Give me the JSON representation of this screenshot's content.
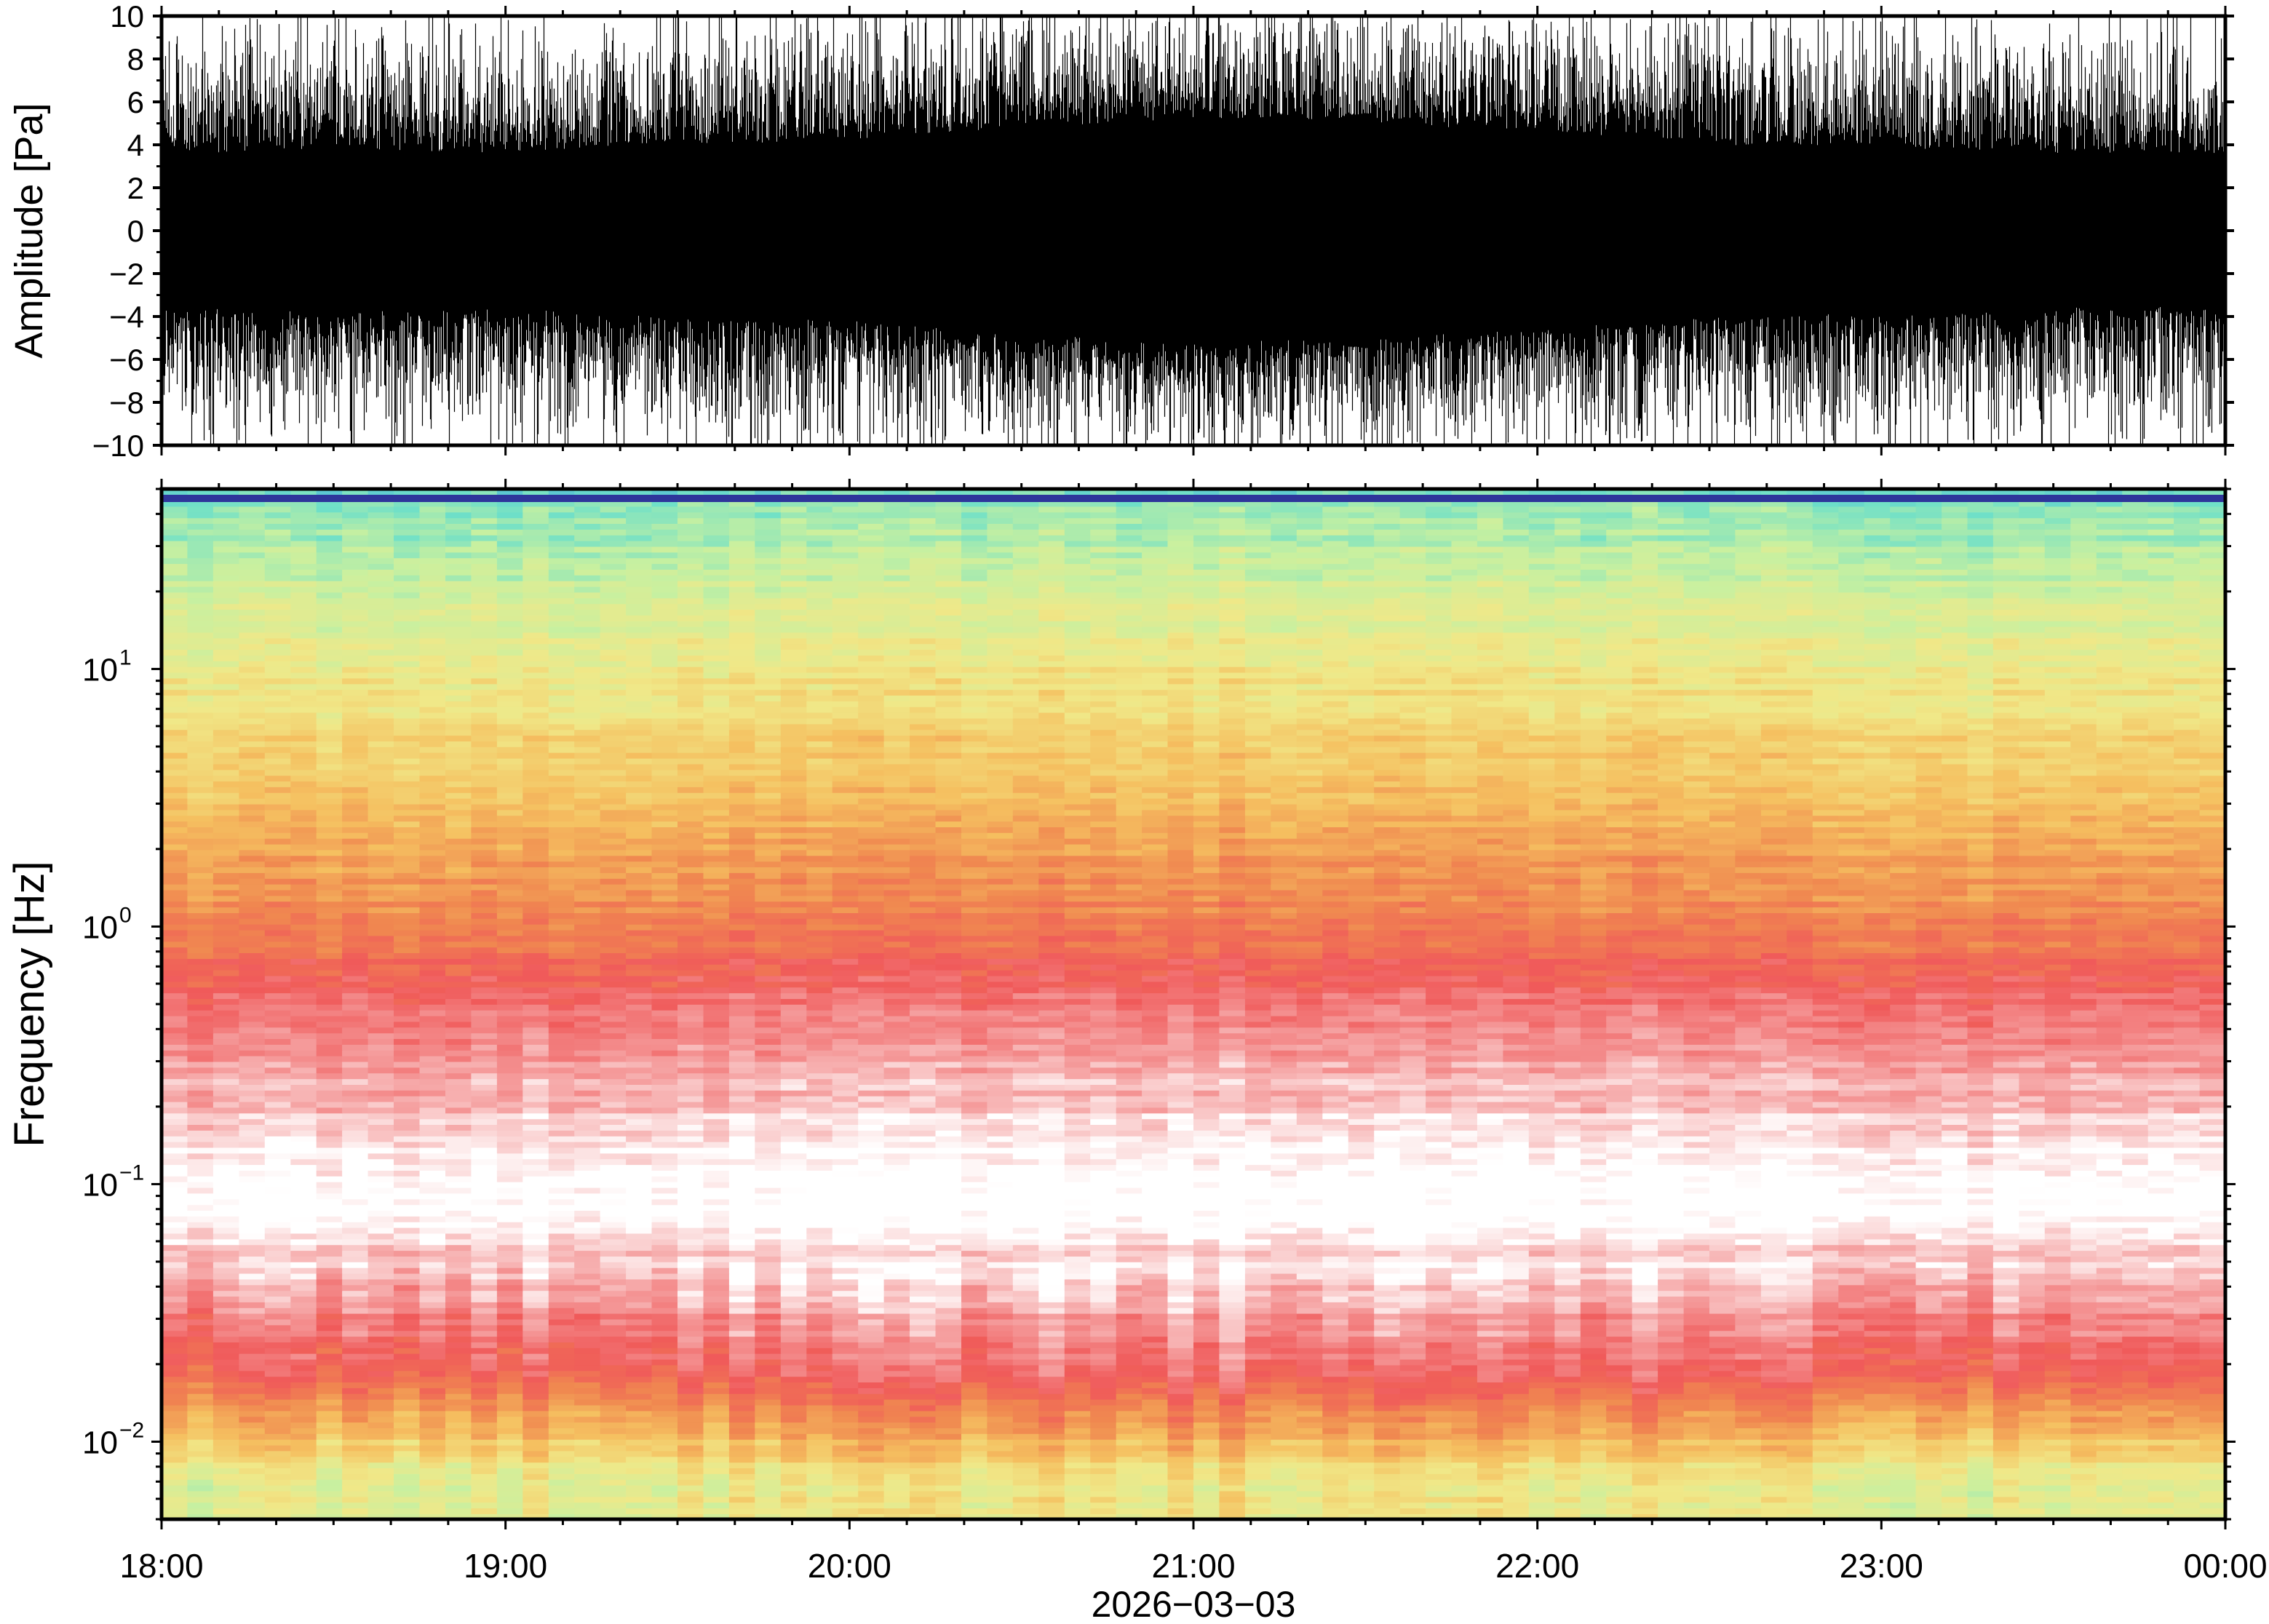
{
  "chart_data": [
    {
      "type": "line",
      "panel": "waveform",
      "ylabel": "Amplitude [Pa]",
      "ylim": [
        -10,
        10
      ],
      "yticks": [
        10,
        8,
        6,
        4,
        2,
        0,
        -2,
        -4,
        -6,
        -8,
        -10
      ],
      "ytick_labels": [
        "10",
        "8",
        "6",
        "4",
        "2",
        "0",
        "−2",
        "−4",
        "−6",
        "−8",
        "−10"
      ],
      "x_range_hours": [
        18,
        24
      ],
      "series_color": "#000000",
      "envelope_hours": [
        18.0,
        18.5,
        19.0,
        19.5,
        20.0,
        20.5,
        21.0,
        21.5,
        22.0,
        22.5,
        23.0,
        23.5,
        24.0
      ],
      "envelope_core": [
        3.5,
        3.8,
        3.6,
        4.0,
        4.2,
        4.8,
        5.2,
        5.0,
        4.6,
        4.0,
        3.8,
        3.6,
        3.5
      ],
      "envelope_peak": [
        9.5,
        9.5,
        9.0,
        9.5,
        9.8,
        10.0,
        10.0,
        10.0,
        10.0,
        9.8,
        9.5,
        9.0,
        9.0
      ],
      "grid": false
    },
    {
      "type": "heatmap",
      "panel": "spectrogram",
      "ylabel": "Frequency [Hz]",
      "yscale": "log",
      "ylim": [
        0.005,
        50
      ],
      "yticks": [
        {
          "base": "10",
          "exp": "1",
          "value": 10
        },
        {
          "base": "10",
          "exp": "0",
          "value": 1
        },
        {
          "base": "10",
          "exp": "−1",
          "value": 0.1
        },
        {
          "base": "10",
          "exp": "−2",
          "value": 0.01
        }
      ],
      "x_range_hours": [
        18,
        24
      ],
      "xticks": [
        "18:00",
        "19:00",
        "20:00",
        "21:00",
        "22:00",
        "23:00",
        "00:00"
      ],
      "xlabel": "2026−03−03",
      "colormap": [
        "#2a1a8a",
        "#3fa0e0",
        "#6fe0c8",
        "#c8f0a0",
        "#f0e888",
        "#f5c060",
        "#f08850",
        "#f05a5a",
        "#f5a0a0",
        "#ffffff"
      ],
      "level_profile_freq_hz": [
        45,
        30,
        15,
        8,
        4,
        2,
        1,
        0.6,
        0.3,
        0.15,
        0.08,
        0.05,
        0.03,
        0.02,
        0.012,
        0.007
      ],
      "level_profile_value": [
        2.0,
        2.6,
        3.4,
        4.0,
        4.7,
        5.3,
        6.0,
        6.9,
        7.8,
        8.6,
        9.2,
        8.2,
        7.3,
        6.8,
        5.0,
        3.4
      ],
      "grid": false
    }
  ]
}
